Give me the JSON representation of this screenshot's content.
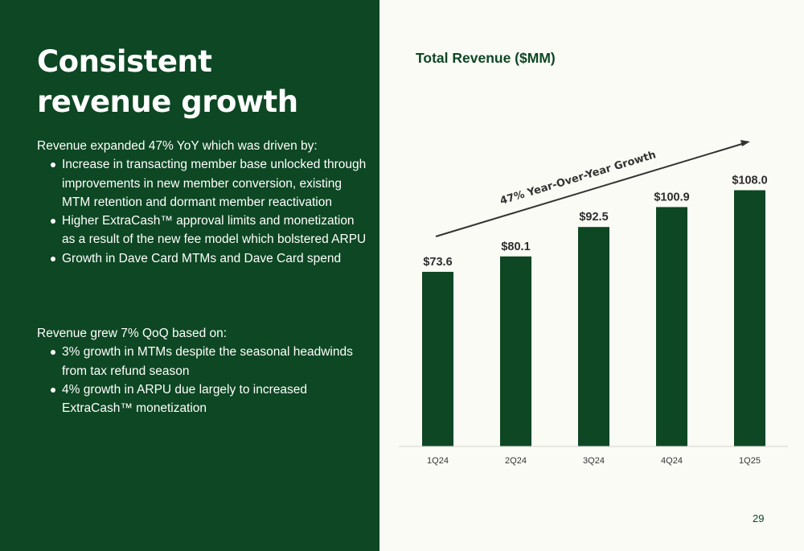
{
  "slide": {
    "headline_line1": "Consistent",
    "headline_line2": "revenue growth",
    "yoy_intro": "Revenue expanded 47% YoY which was driven by:",
    "yoy_bullets": [
      "Increase in transacting member base unlocked through improvements in new member conversion, existing MTM retention and dormant member reactivation",
      "Higher ExtraCash™ approval limits and monetization as a result of the new fee model which bolstered ARPU",
      "Growth in Dave Card MTMs and Dave Card spend"
    ],
    "qoq_intro": "Revenue grew 7% QoQ based on:",
    "qoq_bullets": [
      "3% growth in MTMs despite the seasonal headwinds from tax refund season",
      "4% growth in ARPU due largely to increased ExtraCash™ monetization"
    ],
    "page_number": "29"
  },
  "colors": {
    "brand_green": "#0d4723",
    "background": "#fbfbf6",
    "label_gray": "#2d2d2d"
  },
  "chart_data": {
    "type": "bar",
    "title": "Total Revenue ($MM)",
    "categories": [
      "1Q24",
      "2Q24",
      "3Q24",
      "4Q24",
      "1Q25"
    ],
    "values": [
      73.6,
      80.1,
      92.5,
      100.9,
      108.0
    ],
    "data_labels": [
      "$73.6",
      "$80.1",
      "$92.5",
      "$100.9",
      "$108.0"
    ],
    "annotation": "47% Year-Over-Year Growth",
    "ylim": [
      0,
      118
    ],
    "grid": false,
    "legend": "none"
  }
}
